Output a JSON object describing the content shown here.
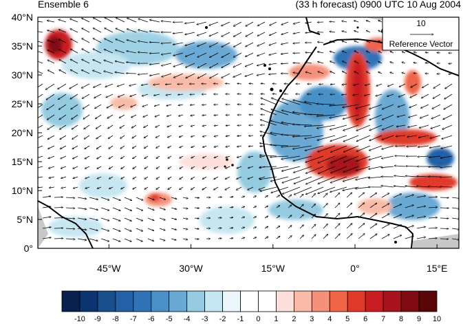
{
  "header": {
    "left_title": "Ensemble 6",
    "right_title": "(33 h forecast) 0900 UTC 10 Aug 2004"
  },
  "map": {
    "y_axis_labels": [
      "40°N",
      "35°N",
      "30°N",
      "25°N",
      "20°N",
      "15°N",
      "10°N",
      "5°N",
      "0°"
    ],
    "x_axis_labels": [
      "45°W",
      "30°W",
      "15°W",
      "0°",
      "15°E"
    ],
    "lat_range": [
      0,
      40
    ],
    "lon_range": [
      -58,
      19
    ]
  },
  "reference_vector": {
    "magnitude": "10",
    "label": "Reference Vector"
  },
  "colorbar": {
    "labels": [
      "-10",
      "-9",
      "-8",
      "-7",
      "-6",
      "-5",
      "-4",
      "-3",
      "-2",
      "-1",
      "0",
      "1",
      "2",
      "3",
      "4",
      "5",
      "6",
      "7",
      "8",
      "9",
      "10"
    ],
    "colors": [
      "#08214d",
      "#0c3470",
      "#1a4f8c",
      "#2460a6",
      "#2f73b6",
      "#4a90c6",
      "#6aa9d3",
      "#95cbe0",
      "#c6e6f1",
      "#ecf7fb",
      "#ffffff",
      "#ffffff",
      "#fde0dc",
      "#f9bba8",
      "#f5917a",
      "#ee6548",
      "#df3a2a",
      "#c81e22",
      "#a8141d",
      "#7e0c12",
      "#5a0506"
    ]
  }
}
